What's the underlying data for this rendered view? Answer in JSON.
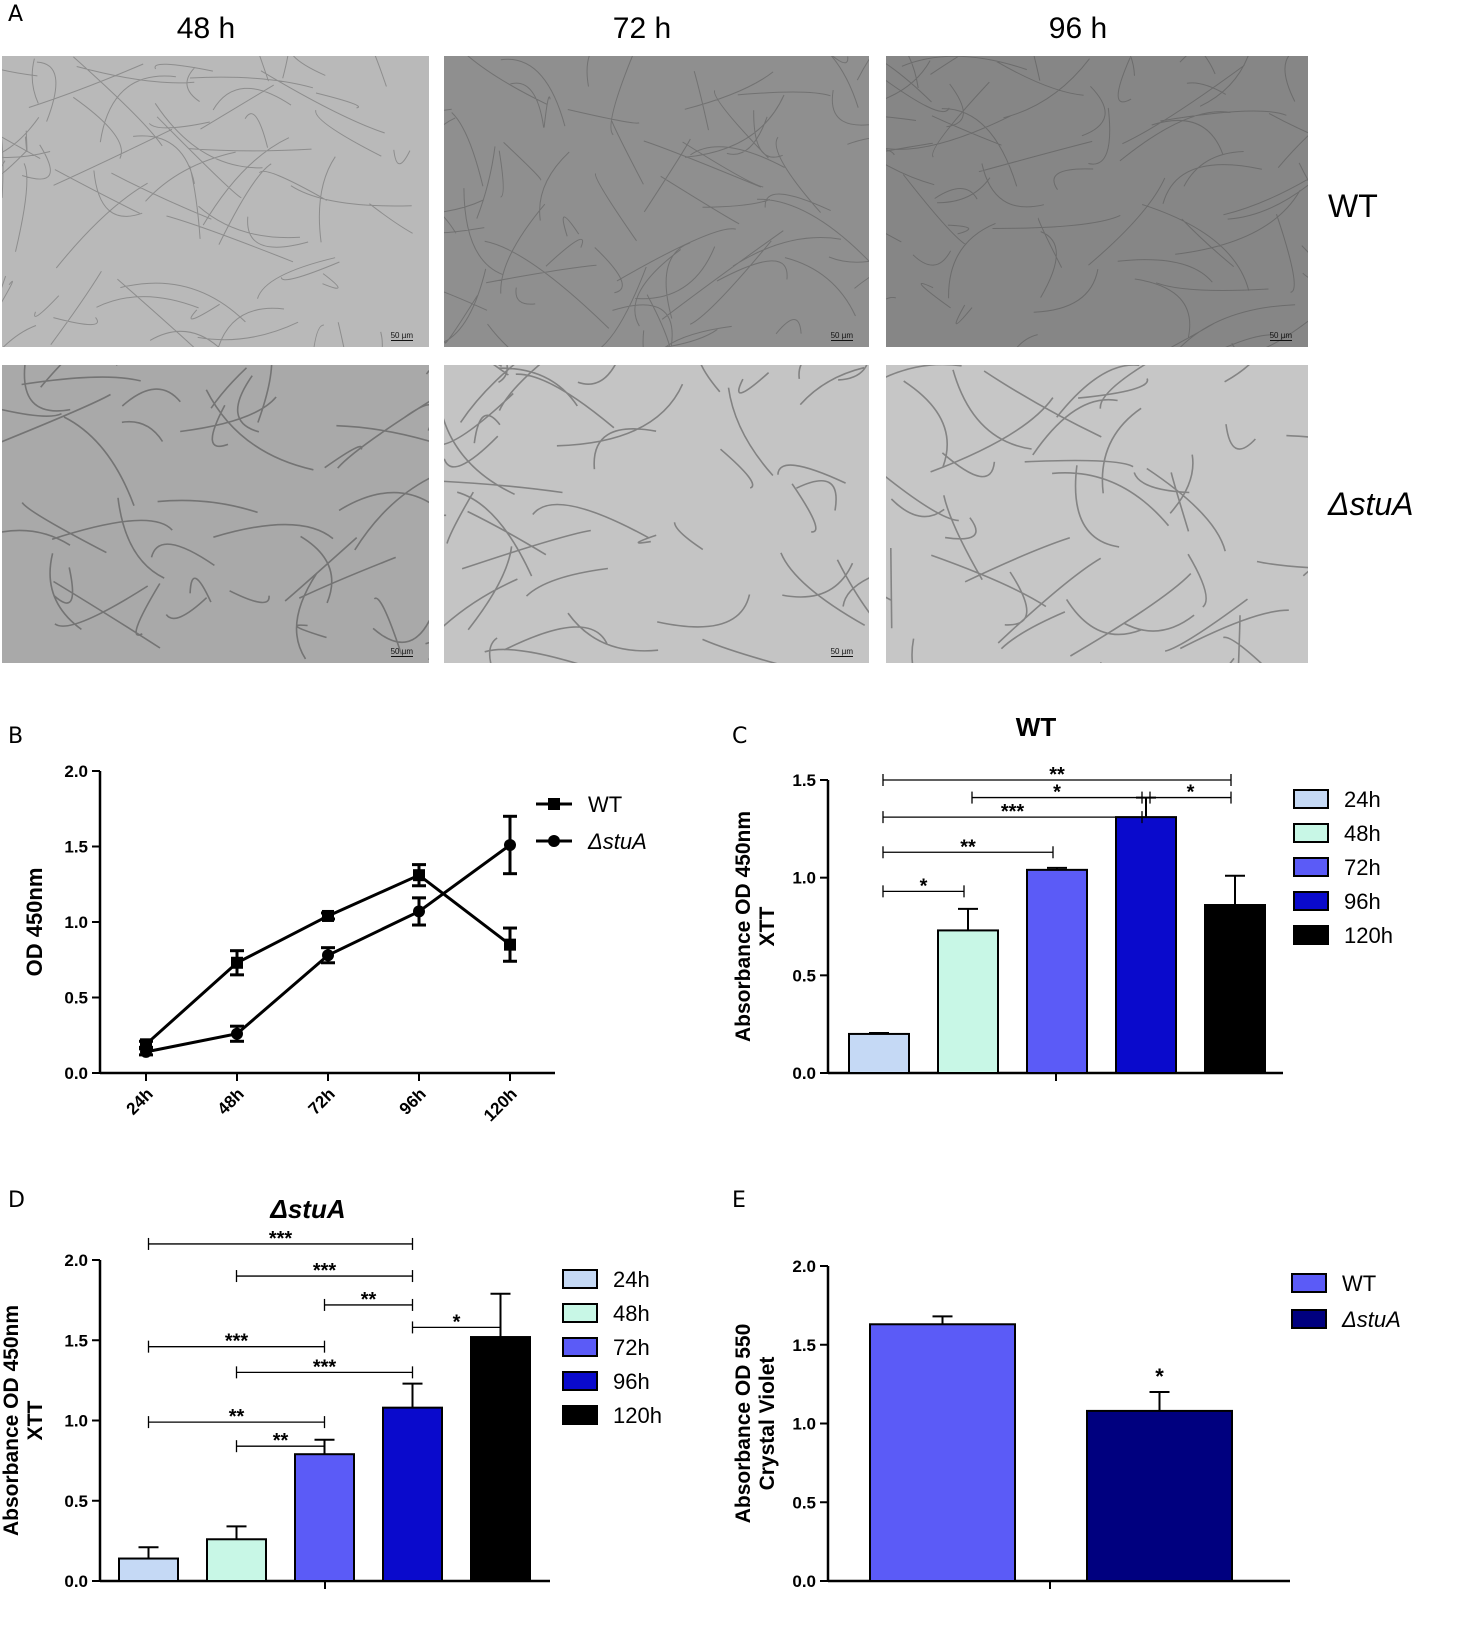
{
  "panel_labels": {
    "a": "A",
    "b": "B",
    "c": "C",
    "d": "D",
    "e": "E"
  },
  "micrographs": {
    "columns": [
      "48 h",
      "72 h",
      "96 h"
    ],
    "rows": [
      {
        "label": "WT",
        "italic": false
      },
      {
        "label": "ΔstuA",
        "italic": true
      }
    ],
    "scale_bar": "50 µm"
  },
  "chart_data": [
    {
      "panel": "B",
      "type": "line",
      "title": "",
      "xlabel": "",
      "ylabel": "OD 450nm",
      "categories": [
        "24h",
        "48h",
        "72h",
        "96h",
        "120h"
      ],
      "ylim": [
        0,
        2.0
      ],
      "yticks": [
        "0.0",
        "0.5",
        "1.0",
        "1.5",
        "2.0"
      ],
      "legend_position": "top-right",
      "series": [
        {
          "name": "WT",
          "marker": "square",
          "values": [
            0.19,
            0.73,
            1.04,
            1.31,
            0.85
          ],
          "errors": [
            0.02,
            0.08,
            0.02,
            0.07,
            0.11
          ]
        },
        {
          "name": "ΔstuA",
          "marker": "circle",
          "values": [
            0.14,
            0.26,
            0.78,
            1.07,
            1.51
          ],
          "errors": [
            0.02,
            0.05,
            0.05,
            0.09,
            0.19
          ]
        }
      ]
    },
    {
      "panel": "C",
      "type": "bar",
      "title": "WT",
      "ylabel": "Absorbance OD 450nm",
      "ylabel2": "XTT",
      "categories": [
        "24h",
        "48h",
        "72h",
        "96h",
        "120h"
      ],
      "legend": [
        "24h",
        "48h",
        "72h",
        "96h",
        "120h"
      ],
      "values": [
        0.2,
        0.73,
        1.04,
        1.31,
        0.86
      ],
      "errors": [
        0.005,
        0.11,
        0.01,
        0.1,
        0.15
      ],
      "colors": [
        "#c5d9f5",
        "#c8f7e6",
        "#5b5bf7",
        "#0a0acc",
        "#000000"
      ],
      "ylim": [
        0,
        1.5
      ],
      "yticks": [
        "0.0",
        "0.5",
        "1.0",
        "1.5"
      ],
      "significance": [
        {
          "from": 0,
          "to": 1,
          "label": "*",
          "y": 0.93
        },
        {
          "from": 0,
          "to": 2,
          "label": "**",
          "y": 1.13
        },
        {
          "from": 0,
          "to": 3,
          "label": "***",
          "y": 1.31
        },
        {
          "from": 1,
          "to": 3,
          "label": "*",
          "y": 1.41
        },
        {
          "from": 0,
          "to": 4,
          "label": "**",
          "y": 1.5
        },
        {
          "from": 3,
          "to": 4,
          "label": "*",
          "y": 1.41
        }
      ]
    },
    {
      "panel": "D",
      "type": "bar",
      "title": "ΔstuA",
      "ylabel": "Absorbance OD 450nm",
      "ylabel2": "XTT",
      "categories": [
        "24h",
        "48h",
        "72h",
        "96h",
        "120h"
      ],
      "legend": [
        "24h",
        "48h",
        "72h",
        "96h",
        "120h"
      ],
      "values": [
        0.14,
        0.26,
        0.79,
        1.08,
        1.52
      ],
      "errors": [
        0.07,
        0.08,
        0.09,
        0.15,
        0.27
      ],
      "colors": [
        "#c5d9f5",
        "#c8f7e6",
        "#5b5bf7",
        "#0a0acc",
        "#000000"
      ],
      "ylim": [
        0,
        2.0
      ],
      "yticks": [
        "0.0",
        "0.5",
        "1.0",
        "1.5",
        "2.0"
      ],
      "significance": [
        {
          "from": 0,
          "to": 3,
          "label": "***",
          "y": 2.1
        },
        {
          "from": 1,
          "to": 3,
          "label": "***",
          "y": 1.9
        },
        {
          "from": 2,
          "to": 3,
          "label": "**",
          "y": 1.72
        },
        {
          "from": 3,
          "to": 4,
          "label": "*",
          "y": 1.58
        },
        {
          "from": 0,
          "to": 2,
          "label": "***",
          "y": 1.46
        },
        {
          "from": 1,
          "to": 3,
          "label": "***",
          "y": 1.3
        },
        {
          "from": 0,
          "to": 2,
          "label": "**",
          "y": 0.99
        },
        {
          "from": 1,
          "to": 2,
          "label": "**",
          "y": 0.84
        }
      ]
    },
    {
      "panel": "E",
      "type": "bar",
      "title": "",
      "ylabel": "Absorbance OD 550",
      "ylabel2": "Crystal Violet",
      "categories": [
        "WT",
        "ΔstuA"
      ],
      "legend": [
        "WT",
        "ΔstuA"
      ],
      "values": [
        1.63,
        1.08
      ],
      "errors": [
        0.05,
        0.12
      ],
      "colors": [
        "#5b5bf7",
        "#00007f"
      ],
      "ylim": [
        0,
        2.0
      ],
      "yticks": [
        "0.0",
        "0.5",
        "1.0",
        "1.5",
        "2.0"
      ],
      "significance": [
        {
          "bar": 1,
          "label": "*"
        }
      ]
    }
  ]
}
